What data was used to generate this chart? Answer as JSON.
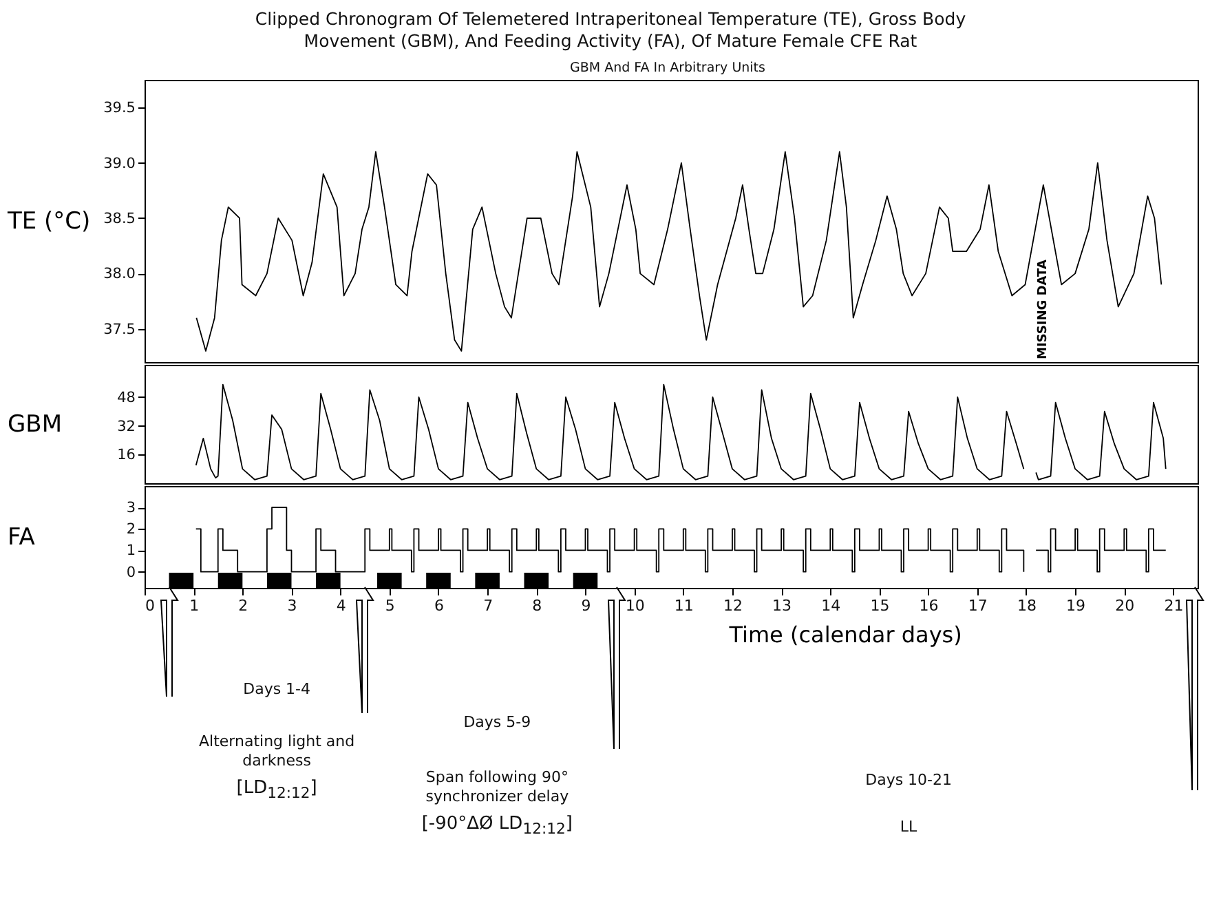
{
  "chart_data": [
    {
      "type": "line",
      "title": "Clipped Chronogram Of Telemetered Intraperitoneal Temperature (TE), Gross Body Movement (GBM), And Feeding Activity (FA), Of Mature Female CFE Rat",
      "subtitle": "GBM And FA In Arbitrary Units",
      "ylabel": "TE (°C)",
      "color": "#000000",
      "x": [
        1.06,
        1.25,
        1.43,
        1.57,
        1.71,
        1.94,
        1.99,
        2.27,
        2.5,
        2.73,
        3.01,
        3.24,
        3.42,
        3.65,
        3.93,
        4.07,
        4.3,
        4.44,
        4.58,
        4.72,
        4.9,
        5.13,
        5.36,
        5.46,
        5.78,
        5.96,
        6.15,
        6.33,
        6.47,
        6.7,
        6.89,
        7.17,
        7.35,
        7.49,
        7.81,
        8.09,
        8.32,
        8.46,
        8.74,
        8.83,
        9.11,
        9.29,
        9.48,
        9.85,
        10.03,
        10.12,
        10.4,
        10.68,
        10.96,
        11.14,
        11.33,
        11.47,
        11.7,
        12.07,
        12.21,
        12.34,
        12.48,
        12.62,
        12.85,
        13.08,
        13.27,
        13.45,
        13.64,
        13.92,
        14.19,
        14.33,
        14.47,
        14.66,
        14.93,
        15.16,
        15.35,
        15.49,
        15.67,
        15.95,
        16.23,
        16.41,
        16.5,
        16.78,
        17.06,
        17.24,
        17.43,
        17.71,
        17.98,
        18.35,
        18.72,
        19.0,
        19.28,
        19.46,
        19.65,
        19.88,
        20.2,
        20.48,
        20.62,
        20.76
      ],
      "values": [
        37.6,
        37.3,
        37.6,
        38.3,
        38.6,
        38.5,
        37.9,
        37.8,
        38.0,
        38.5,
        38.3,
        37.8,
        38.1,
        38.9,
        38.6,
        37.8,
        38.0,
        38.4,
        38.6,
        39.1,
        38.6,
        37.9,
        37.8,
        38.2,
        38.9,
        38.8,
        38.0,
        37.4,
        37.3,
        38.4,
        38.6,
        38.0,
        37.7,
        37.6,
        38.5,
        38.5,
        38.0,
        37.9,
        38.7,
        39.1,
        38.6,
        37.7,
        38.0,
        38.8,
        38.4,
        38.0,
        37.9,
        38.4,
        39.0,
        38.4,
        37.8,
        37.4,
        37.9,
        38.5,
        38.8,
        38.4,
        38.0,
        38.0,
        38.4,
        39.1,
        38.5,
        37.7,
        37.8,
        38.3,
        39.1,
        38.6,
        37.6,
        37.9,
        38.3,
        38.7,
        38.4,
        38.0,
        37.8,
        38.0,
        38.6,
        38.5,
        38.2,
        38.2,
        38.4,
        38.8,
        38.2,
        37.8,
        37.9,
        38.8,
        37.9,
        38.0,
        38.4,
        39.0,
        38.3,
        37.7,
        38.0,
        38.7,
        38.5,
        37.9
      ],
      "xlim": [
        0,
        21.5
      ],
      "ylim": [
        37.2,
        39.75
      ],
      "yticks": [
        37.5,
        {
          "value": 38,
          "label": "38.0"
        },
        38.5,
        {
          "value": 39,
          "label": "39.0"
        },
        39.5
      ],
      "tick_labels": "y",
      "annotations": [
        "MISSING DATA"
      ]
    },
    {
      "type": "line",
      "ylabel": "GBM",
      "color": "#000000",
      "x": [
        1.05,
        1.2,
        1.35,
        1.45,
        1.5,
        1.6,
        1.8,
        2.0,
        2.25,
        2.5,
        2.6,
        2.8,
        3.0,
        3.25,
        3.5,
        3.6,
        3.8,
        4.0,
        4.25,
        4.5,
        4.6,
        4.8,
        5.0,
        5.25,
        5.5,
        5.6,
        5.8,
        6.0,
        6.25,
        6.5,
        6.6,
        6.8,
        7.0,
        7.25,
        7.5,
        7.6,
        7.8,
        8.0,
        8.25,
        8.5,
        8.6,
        8.8,
        9.0,
        9.25,
        9.5,
        9.6,
        9.8,
        10.0,
        10.25,
        10.5,
        10.6,
        10.8,
        11.0,
        11.25,
        11.5,
        11.6,
        11.8,
        12.0,
        12.25,
        12.5,
        12.6,
        12.8,
        13.0,
        13.25,
        13.5,
        13.6,
        13.8,
        14.0,
        14.25,
        14.5,
        14.6,
        14.8,
        15.0,
        15.25,
        15.5,
        15.6,
        15.8,
        16.0,
        16.25,
        16.5,
        16.6,
        16.8,
        17.0,
        17.25,
        17.5,
        17.6,
        17.8,
        17.95,
        18.05,
        18.2,
        18.25,
        18.5,
        18.6,
        18.8,
        19.0,
        19.25,
        19.5,
        19.6,
        19.8,
        20.0,
        20.25,
        20.5,
        20.6,
        20.8,
        20.85
      ],
      "values": [
        10,
        25,
        8,
        3,
        4,
        55,
        35,
        8,
        2,
        4,
        38,
        30,
        8,
        2,
        4,
        50,
        30,
        8,
        2,
        4,
        52,
        35,
        8,
        2,
        4,
        48,
        30,
        8,
        2,
        4,
        45,
        25,
        8,
        2,
        4,
        50,
        28,
        8,
        2,
        4,
        48,
        30,
        8,
        2,
        4,
        45,
        25,
        8,
        2,
        4,
        55,
        30,
        8,
        2,
        4,
        48,
        28,
        8,
        2,
        4,
        52,
        25,
        8,
        2,
        4,
        50,
        30,
        8,
        2,
        4,
        45,
        25,
        8,
        2,
        4,
        40,
        22,
        8,
        2,
        4,
        48,
        25,
        8,
        2,
        4,
        40,
        22,
        8,
        null,
        6,
        2,
        4,
        45,
        25,
        8,
        2,
        4,
        40,
        22,
        8,
        2,
        4,
        45,
        25,
        8
      ],
      "xlim": [
        0,
        21.5
      ],
      "ylim": [
        0,
        66
      ],
      "yticks": [
        16,
        32,
        48
      ],
      "tick_labels": "y"
    },
    {
      "type": "step",
      "ylabel": "FA",
      "xlabel": "Time (calendar days)",
      "color": "#000000",
      "x": [
        1.05,
        1.15,
        1.5,
        1.6,
        1.9,
        2.5,
        2.6,
        2.9,
        3.0,
        3.5,
        3.6,
        3.9,
        4.5,
        4.6,
        5.0,
        5.05,
        5.45,
        5.5,
        5.6,
        6.0,
        6.05,
        6.45,
        6.5,
        6.6,
        7.0,
        7.05,
        7.45,
        7.5,
        7.6,
        8.0,
        8.05,
        8.45,
        8.5,
        8.6,
        9.0,
        9.05,
        9.45,
        9.5,
        9.6,
        10.0,
        10.05,
        10.45,
        10.5,
        10.6,
        11.0,
        11.05,
        11.45,
        11.5,
        11.6,
        12.0,
        12.05,
        12.45,
        12.5,
        12.6,
        13.0,
        13.05,
        13.45,
        13.5,
        13.6,
        14.0,
        14.05,
        14.45,
        14.5,
        14.6,
        15.0,
        15.05,
        15.45,
        15.5,
        15.6,
        16.0,
        16.05,
        16.45,
        16.5,
        16.6,
        17.0,
        17.05,
        17.45,
        17.5,
        17.6,
        17.95,
        18.05,
        18.2,
        18.45,
        18.5,
        18.6,
        19.0,
        19.05,
        19.45,
        19.5,
        19.6,
        20.0,
        20.05,
        20.45,
        20.5,
        20.6,
        20.85
      ],
      "values": [
        2,
        0,
        2,
        1,
        0,
        2,
        3,
        1,
        0,
        2,
        1,
        0,
        2,
        1,
        2,
        1,
        0,
        2,
        1,
        2,
        1,
        0,
        2,
        1,
        2,
        1,
        0,
        2,
        1,
        2,
        1,
        0,
        2,
        1,
        2,
        1,
        0,
        2,
        1,
        2,
        1,
        0,
        2,
        1,
        2,
        1,
        0,
        2,
        1,
        2,
        1,
        0,
        2,
        1,
        2,
        1,
        0,
        2,
        1,
        2,
        1,
        0,
        2,
        1,
        2,
        1,
        0,
        2,
        1,
        2,
        1,
        0,
        2,
        1,
        2,
        1,
        0,
        2,
        1,
        0,
        null,
        1,
        0,
        2,
        1,
        2,
        1,
        0,
        2,
        1,
        2,
        1,
        0,
        2,
        1,
        1
      ],
      "xlim": [
        0,
        21.5
      ],
      "xticks": [
        0,
        1,
        2,
        3,
        4,
        5,
        6,
        7,
        8,
        9,
        10,
        11,
        12,
        13,
        14,
        15,
        16,
        17,
        18,
        19,
        20,
        21
      ],
      "ylim": [
        -0.75,
        4
      ],
      "yticks": [
        0,
        1,
        2,
        3
      ],
      "bands": [
        {
          "axis": "x",
          "from": 0.5,
          "to": 1.0,
          "color": "#000000"
        },
        {
          "axis": "x",
          "from": 1.5,
          "to": 2.0,
          "color": "#000000"
        },
        {
          "axis": "x",
          "from": 2.5,
          "to": 3.0,
          "color": "#000000"
        },
        {
          "axis": "x",
          "from": 3.5,
          "to": 4.0,
          "color": "#000000"
        },
        {
          "axis": "x",
          "from": 4.75,
          "to": 5.25,
          "color": "#000000"
        },
        {
          "axis": "x",
          "from": 5.75,
          "to": 6.25,
          "color": "#000000"
        },
        {
          "axis": "x",
          "from": 6.75,
          "to": 7.25,
          "color": "#000000"
        },
        {
          "axis": "x",
          "from": 7.75,
          "to": 8.25,
          "color": "#000000"
        },
        {
          "axis": "x",
          "from": 8.75,
          "to": 9.25,
          "color": "#000000"
        }
      ],
      "annotations": [
        "Days 1-4",
        "Alternating light and darkness",
        "[LD$_{12:12}$]",
        "Days 5-9",
        "Span following 90° synchronizer delay",
        "[-90°ΔØ LD$_{12:12}$]",
        "Days 10-21",
        "LL"
      ]
    }
  ]
}
